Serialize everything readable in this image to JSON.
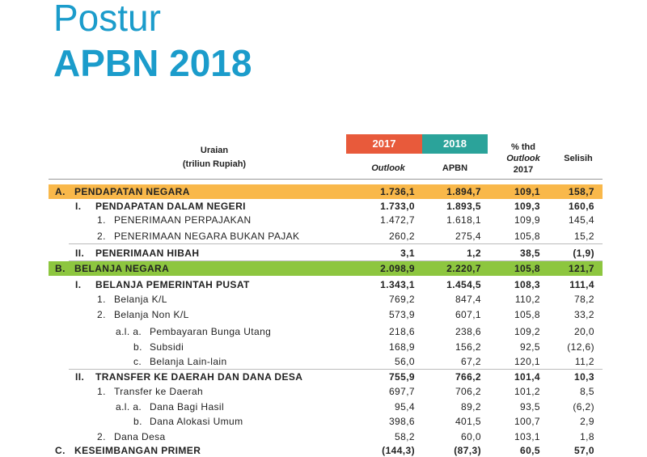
{
  "header": {
    "title": "Postur",
    "subtitle": "APBN 2018"
  },
  "table": {
    "columns": {
      "description": "Uraian",
      "unit": "(triliun Rupiah)",
      "year1": "2017",
      "year2": "2018",
      "sub1": "Outlook",
      "sub2": "APBN",
      "pct1": "% thd",
      "pct2": "Outlook",
      "pct3": "2017",
      "diff": "Selisih"
    },
    "rows": [
      {
        "marker": "A.",
        "label": "PENDAPATAN NEGARA",
        "values": [
          "1.736,1",
          "1.894,7",
          "109,1",
          "158,7"
        ]
      },
      {
        "marker": "I.",
        "label": "PENDAPATAN DALAM NEGERI",
        "values": [
          "1.733,0",
          "1.893,5",
          "109,3",
          "160,6"
        ]
      },
      {
        "marker": "1.",
        "label": "PENERIMAAN PERPAJAKAN",
        "values": [
          "1.472,7",
          "1.618,1",
          "109,9",
          "145,4"
        ]
      },
      {
        "marker": "2.",
        "label": "PENERIMAAN NEGARA BUKAN PAJAK",
        "values": [
          "260,2",
          "275,4",
          "105,8",
          "15,2"
        ]
      },
      {
        "marker": "II.",
        "label": "PENERIMAAN HIBAH",
        "values": [
          "3,1",
          "1,2",
          "38,5",
          "(1,9)"
        ]
      },
      {
        "marker": "B.",
        "label": "BELANJA NEGARA",
        "values": [
          "2.098,9",
          "2.220,7",
          "105,8",
          "121,7"
        ]
      },
      {
        "marker": "I.",
        "label": "BELANJA PEMERINTAH PUSAT",
        "values": [
          "1.343,1",
          "1.454,5",
          "108,3",
          "111,4"
        ]
      },
      {
        "marker": "1.",
        "label": "Belanja K/L",
        "values": [
          "769,2",
          "847,4",
          "110,2",
          "78,2"
        ]
      },
      {
        "marker": "2.",
        "label": "Belanja Non K/L",
        "values": [
          "573,9",
          "607,1",
          "105,8",
          "33,2"
        ]
      },
      {
        "marker": "a.l. a.",
        "label": "Pembayaran Bunga Utang",
        "values": [
          "218,6",
          "238,6",
          "109,2",
          "20,0"
        ]
      },
      {
        "marker": "b.",
        "label": "Subsidi",
        "values": [
          "168,9",
          "156,2",
          "92,5",
          "(12,6)"
        ]
      },
      {
        "marker": "c.",
        "label": "Belanja Lain-lain",
        "values": [
          "56,0",
          "67,2",
          "120,1",
          "11,2"
        ]
      },
      {
        "marker": "II.",
        "label": "TRANSFER KE DAERAH DAN DANA DESA",
        "values": [
          "755,9",
          "766,2",
          "101,4",
          "10,3"
        ]
      },
      {
        "marker": "1.",
        "label": "Transfer ke Daerah",
        "values": [
          "697,7",
          "706,2",
          "101,2",
          "8,5"
        ]
      },
      {
        "marker": "a.l. a.",
        "label": "Dana Bagi Hasil",
        "values": [
          "95,4",
          "89,2",
          "93,5",
          "(6,2)"
        ]
      },
      {
        "marker": "b.",
        "label": "Dana Alokasi Umum",
        "values": [
          "398,6",
          "401,5",
          "100,7",
          "2,9"
        ]
      },
      {
        "marker": "2.",
        "label": "Dana Desa",
        "values": [
          "58,2",
          "60,0",
          "103,1",
          "1,8"
        ]
      },
      {
        "marker": "C.",
        "label": "KESEIMBANGAN PRIMER",
        "values": [
          "(144,3)",
          "(87,3)",
          "60,5",
          "57,0"
        ]
      }
    ]
  }
}
